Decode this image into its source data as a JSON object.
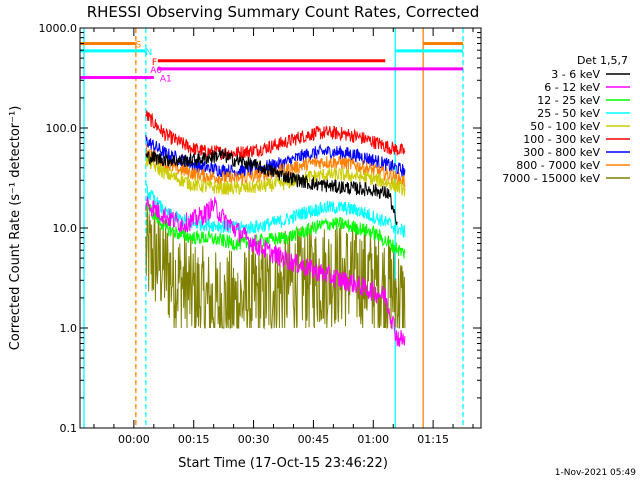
{
  "chart_data": {
    "type": "line",
    "title": "RHESSI Observing Summary Count Rates, Corrected",
    "xlabel": "Start Time (17-Oct-15 23:46:22)",
    "ylabel": "Corrected Count Rate (s⁻¹ detector⁻¹)",
    "yscale": "log",
    "ylim": [
      0.1,
      1000
    ],
    "xlim_minutes": [
      -13.5,
      87
    ],
    "x_tick_labels": [
      {
        "min": 0,
        "label": "00:00"
      },
      {
        "min": 15,
        "label": "00:15"
      },
      {
        "min": 30,
        "label": "00:30"
      },
      {
        "min": 45,
        "label": "00:45"
      },
      {
        "min": 60,
        "label": "01:00"
      },
      {
        "min": 75,
        "label": "01:15"
      }
    ],
    "y_tick_labels": [
      {
        "v": 0.1,
        "label": "0.1"
      },
      {
        "v": 1,
        "label": "1.0"
      },
      {
        "v": 10,
        "label": "10.0"
      },
      {
        "v": 100,
        "label": "100.0"
      },
      {
        "v": 1000,
        "label": "1000.0"
      }
    ],
    "legend_title": "Det 1,5,7",
    "legend_position": "right",
    "series": [
      {
        "name": "3 - 6 keV",
        "color": "#000000",
        "x": [
          3,
          8,
          12,
          15,
          18,
          22,
          25,
          28,
          32,
          38,
          44,
          50,
          55,
          60,
          64,
          66
        ],
        "y": [
          52,
          48,
          47,
          48,
          50,
          54,
          48,
          45,
          40,
          33,
          28,
          26,
          25,
          24,
          22,
          10
        ]
      },
      {
        "name": "6 - 12 keV",
        "color": "#ff00ff",
        "x": [
          3,
          8,
          12,
          15,
          18,
          20,
          22,
          25,
          30,
          35,
          40,
          45,
          50,
          55,
          60,
          63,
          66,
          68
        ],
        "y": [
          18,
          13,
          11,
          12,
          14,
          17,
          13,
          10,
          7,
          5.5,
          4.5,
          3.8,
          3.2,
          2.8,
          2.3,
          2.1,
          0.8,
          0.75
        ]
      },
      {
        "name": "12 - 25 keV",
        "color": "#00ff00",
        "x": [
          3,
          8,
          12,
          15,
          18,
          22,
          25,
          28,
          32,
          38,
          42,
          45,
          48,
          52,
          56,
          60,
          64,
          68
        ],
        "y": [
          17,
          10,
          8.5,
          8,
          8,
          7.5,
          7,
          7,
          7.5,
          8,
          9,
          10,
          11,
          11,
          10,
          9,
          7,
          5.5
        ]
      },
      {
        "name": "25 - 50 keV",
        "color": "#00ffff",
        "x": [
          3,
          8,
          12,
          15,
          18,
          22,
          25,
          28,
          32,
          38,
          42,
          45,
          48,
          52,
          56,
          60,
          64,
          68
        ],
        "y": [
          24,
          14,
          12,
          11,
          11,
          10.5,
          10,
          10,
          10.5,
          12,
          14,
          15,
          16,
          16,
          15,
          13,
          11,
          9
        ]
      },
      {
        "name": "50 - 100 keV",
        "color": "#cccc00",
        "x": [
          3,
          8,
          12,
          15,
          18,
          22,
          25,
          28,
          32,
          38,
          42,
          45,
          48,
          52,
          56,
          60,
          64,
          68
        ],
        "y": [
          48,
          35,
          30,
          27,
          26,
          25,
          25,
          25,
          26,
          28,
          31,
          33,
          34,
          34,
          33,
          31,
          28,
          24
        ]
      },
      {
        "name": "100 - 300 keV",
        "color": "#ff0000",
        "x": [
          3,
          8,
          12,
          15,
          18,
          22,
          25,
          28,
          32,
          38,
          42,
          45,
          48,
          52,
          56,
          60,
          64,
          68
        ],
        "y": [
          135,
          85,
          70,
          62,
          58,
          57,
          56,
          58,
          62,
          72,
          82,
          88,
          90,
          88,
          82,
          73,
          64,
          58
        ]
      },
      {
        "name": "300 - 800 keV",
        "color": "#0000ff",
        "x": [
          3,
          8,
          12,
          15,
          18,
          22,
          25,
          28,
          32,
          38,
          42,
          45,
          48,
          52,
          56,
          60,
          64,
          68
        ],
        "y": [
          75,
          55,
          48,
          43,
          40,
          38,
          37,
          38,
          40,
          45,
          52,
          56,
          58,
          57,
          53,
          48,
          42,
          37
        ]
      },
      {
        "name": "800 - 7000 keV",
        "color": "#ff8000",
        "x": [
          3,
          8,
          12,
          15,
          18,
          22,
          25,
          28,
          32,
          38,
          42,
          45,
          48,
          52,
          56,
          60,
          64,
          68
        ],
        "y": [
          60,
          43,
          38,
          35,
          33,
          32,
          31,
          32,
          34,
          38,
          42,
          45,
          46,
          45,
          42,
          38,
          34,
          29
        ]
      },
      {
        "name": "7000 - 15000 keV",
        "color": "#808000",
        "x": [
          3,
          6,
          9,
          12,
          15,
          18,
          22,
          26,
          30,
          34,
          38,
          42,
          46,
          50,
          54,
          58,
          62,
          66,
          68
        ],
        "y": [
          5.5,
          4.8,
          3.5,
          2.8,
          2.2,
          1.8,
          1.7,
          1.8,
          2,
          2.3,
          2.7,
          3,
          3.3,
          3.5,
          3.4,
          3.2,
          2.8,
          2.2,
          1.5
        ]
      }
    ],
    "vertical_markers": [
      {
        "x": -12.5,
        "color": "#00ffff",
        "style": "solid"
      },
      {
        "x": 0.5,
        "color": "#ff8000",
        "style": "dashed"
      },
      {
        "x": 3,
        "color": "#00ffff",
        "style": "dashed"
      },
      {
        "x": 65.5,
        "color": "#00ffff",
        "style": "solid"
      },
      {
        "x": 72.5,
        "color": "#ff8000",
        "style": "solid"
      },
      {
        "x": 82.5,
        "color": "#00ffff",
        "style": "dashed"
      }
    ],
    "flag_bars": [
      {
        "label": "S",
        "color": "#ff8000",
        "segments": [
          [
            -13.5,
            0.5
          ],
          [
            72.5,
            82.5
          ]
        ],
        "y": 700
      },
      {
        "label": "N",
        "color": "#00ffff",
        "segments": [
          [
            -13.5,
            3
          ],
          [
            65.5,
            82.5
          ]
        ],
        "y": 590
      },
      {
        "label": "F",
        "color": "#ff0000",
        "segments": [
          [
            6,
            63
          ]
        ],
        "y": 470
      },
      {
        "label": "A0",
        "color": "#ff00ff",
        "segments": [
          [
            6,
            82.5
          ]
        ],
        "y": 390
      },
      {
        "label": "A1",
        "color": "#ff00ff",
        "segments": [
          [
            -13.5,
            5
          ]
        ],
        "y": 320
      }
    ]
  },
  "footer": {
    "timestamp": "1-Nov-2021 05:49"
  }
}
